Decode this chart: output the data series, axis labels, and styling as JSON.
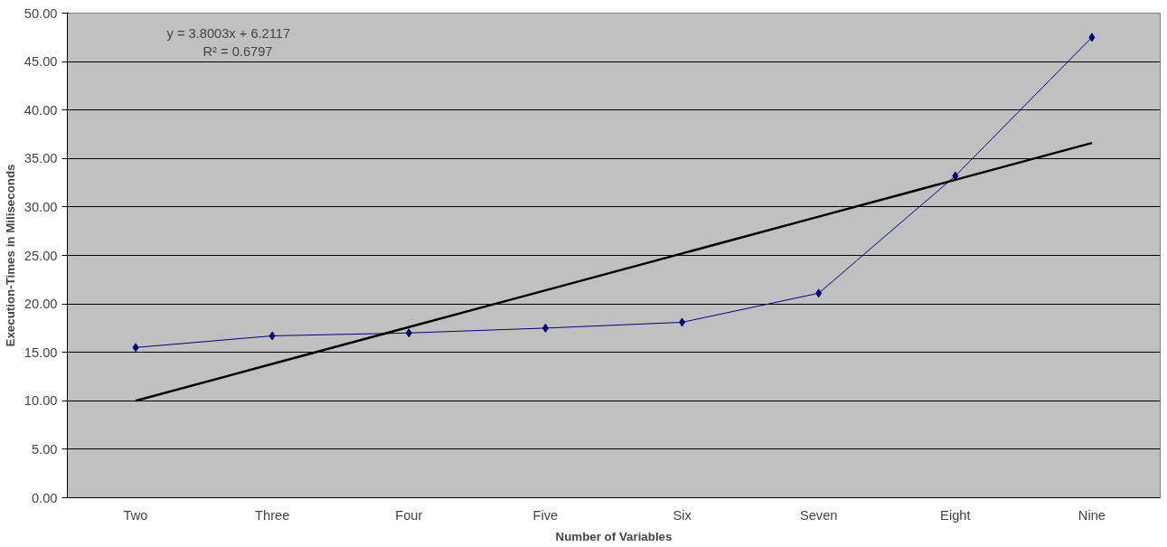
{
  "chart_data": {
    "type": "line",
    "xlabel": "Number of Variables",
    "ylabel": "Execution-Times in Miliseconds",
    "categories": [
      "Two",
      "Three",
      "Four",
      "Five",
      "Six",
      "Seven",
      "Eight",
      "Nine"
    ],
    "series": [
      {
        "color": "#000080",
        "marker": "diamond",
        "values": [
          15.5,
          16.7,
          17.0,
          17.5,
          18.1,
          21.1,
          33.2,
          47.5
        ]
      },
      {
        "color": "#000000",
        "marker": "none",
        "values": [
          10.0,
          13.8,
          17.6,
          21.4,
          25.2,
          29.0,
          32.8,
          36.6
        ]
      }
    ],
    "ylim": [
      0,
      50
    ],
    "yticks": [
      {
        "value": 0,
        "label": "0.00"
      },
      {
        "value": 5,
        "label": "5.00"
      },
      {
        "value": 10,
        "label": "10.00"
      },
      {
        "value": 15,
        "label": "15.00"
      },
      {
        "value": 20,
        "label": "20.00"
      },
      {
        "value": 25,
        "label": "25.00"
      },
      {
        "value": 30,
        "label": "30.00"
      },
      {
        "value": 35,
        "label": "35.00"
      },
      {
        "value": 40,
        "label": "40.00"
      },
      {
        "value": 45,
        "label": "45.00"
      },
      {
        "value": 50,
        "label": "50.00"
      }
    ],
    "grid": "y",
    "annotations": [
      "y = 3.8003x + 6.2117",
      "R² = 0.6797"
    ]
  }
}
